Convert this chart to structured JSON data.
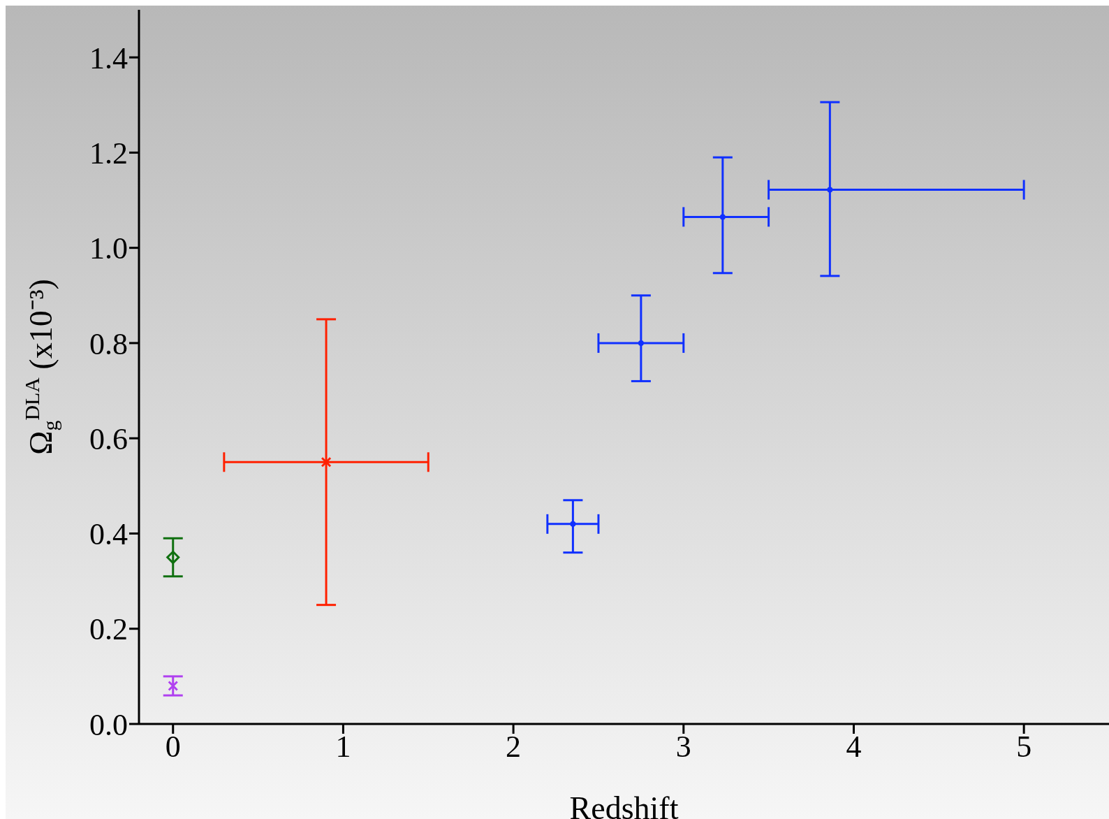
{
  "chart_data": {
    "type": "scatter",
    "xlabel": "Redshift",
    "ylabel": "Ω$_{g}$$^{DLA}$ (x10⁻³)",
    "xlim": [
      -0.2,
      5.5
    ],
    "xticks": [
      0,
      1,
      2,
      3,
      4,
      5
    ],
    "ylim": [
      0,
      1.5
    ],
    "yticks": [
      {
        "value": 0,
        "label": "0.0"
      },
      {
        "value": 0.2,
        "label": "0.2"
      },
      {
        "value": 0.4,
        "label": "0.4"
      },
      {
        "value": 0.6,
        "label": "0.6"
      },
      {
        "value": 0.8,
        "label": "0.8"
      },
      {
        "value": 1,
        "label": "1.0"
      },
      {
        "value": 1.2,
        "label": "1.2"
      },
      {
        "value": 1.4,
        "label": "1.4"
      }
    ],
    "series": [
      {
        "color": "#b040f0",
        "marker": "cross",
        "x": [
          0
        ],
        "values": [
          0.08
        ],
        "errors": [
          0.02
        ]
      },
      {
        "color": "#107010",
        "marker": "diamond",
        "x": [
          0
        ],
        "values": [
          0.35
        ],
        "errors": [
          0.04
        ]
      },
      {
        "color": "#ff2000",
        "marker": "cross",
        "x": [
          0.9
        ],
        "values": [
          0.55
        ],
        "errors": [
          [
            0.25,
            0.85
          ]
        ],
        "xerrors": [
          [
            0.3,
            1.5
          ]
        ]
      },
      {
        "color": "#1030ff",
        "x": [
          2.35,
          2.75,
          3.23,
          3.86
        ],
        "values": [
          0.42,
          0.8,
          1.065,
          1.122
        ],
        "errors": [
          [
            0.36,
            0.47
          ],
          [
            0.72,
            0.9
          ],
          [
            0.947,
            1.19
          ],
          [
            0.941,
            1.306
          ]
        ],
        "xerrors": [
          [
            2.2,
            2.5
          ],
          [
            2.5,
            3.0
          ],
          [
            3.0,
            3.5
          ],
          [
            3.5,
            5.0
          ]
        ]
      }
    ]
  }
}
